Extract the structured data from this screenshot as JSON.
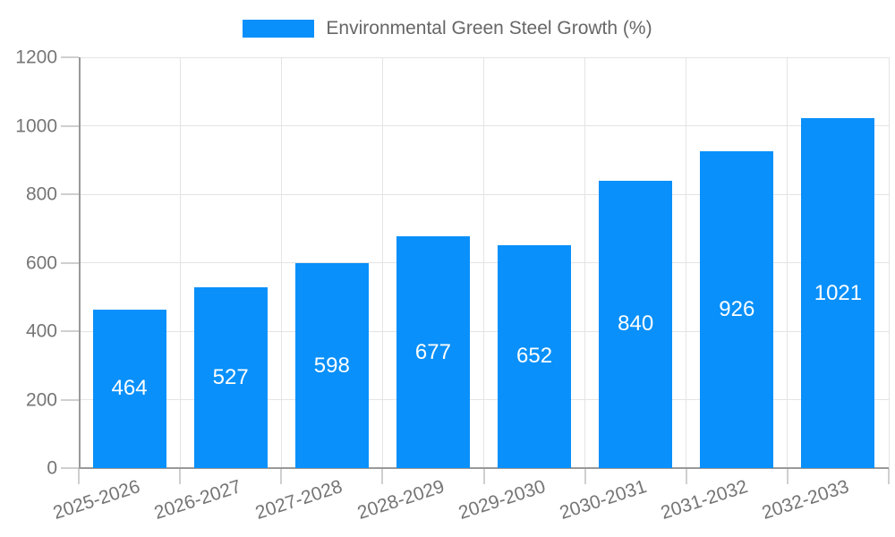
{
  "legend": {
    "label": "Environmental Green Steel Growth (%)"
  },
  "colors": {
    "bar": "#0990fa",
    "grid": "#e4e4e4",
    "axis": "#999999",
    "tick": "#cfcfcf",
    "axis_label": "#757575",
    "legend_text": "#666666",
    "value_label": "#ffffff",
    "background": "#ffffff"
  },
  "chart_data": {
    "type": "bar",
    "title": "Environmental Green Steel Growth (%)",
    "categories": [
      "2025-2026",
      "2026-2027",
      "2027-2028",
      "2028-2029",
      "2029-2030",
      "2030-2031",
      "2031-2032",
      "2032-2033"
    ],
    "values": [
      464,
      527,
      598,
      677,
      652,
      840,
      926,
      1021
    ],
    "xlabel": "",
    "ylabel": "",
    "ylim": [
      0,
      1200
    ],
    "yticks": [
      0,
      200,
      400,
      600,
      800,
      1000,
      1200
    ],
    "grid": true,
    "legend_position": "top",
    "bar_labels": "inside-center",
    "x_label_rotation_deg": -18
  }
}
